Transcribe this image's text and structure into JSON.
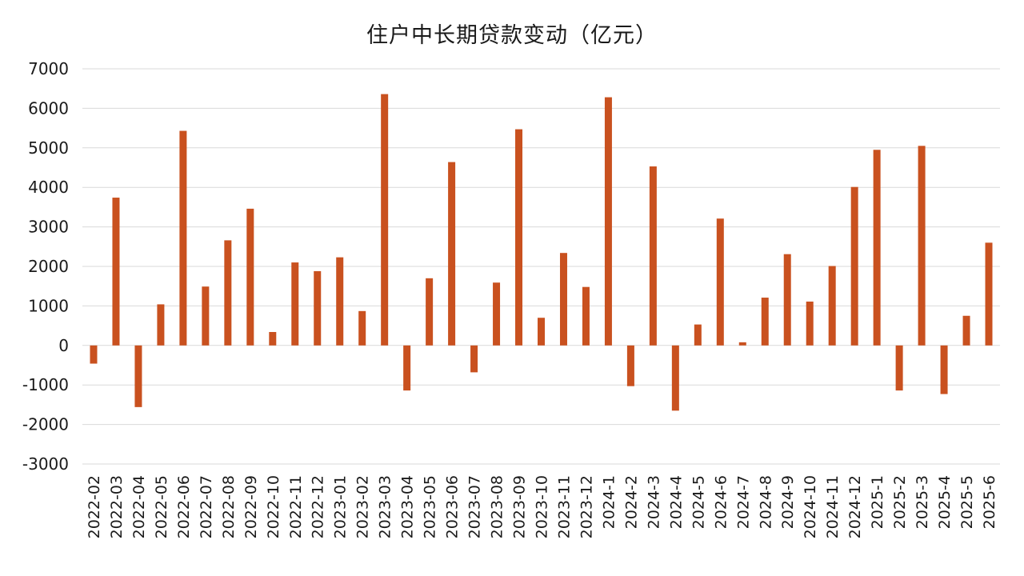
{
  "chart_data": {
    "type": "bar",
    "title": "住户中长期贷款变动（亿元）",
    "xlabel": "",
    "ylabel": "",
    "ylim": [
      -3000,
      7000
    ],
    "yticks": [
      7000,
      6000,
      5000,
      4000,
      3000,
      2000,
      1000,
      0,
      -1000,
      -2000,
      -3000
    ],
    "grid": true,
    "legend": "none",
    "bar_color": "#c9511f",
    "categories": [
      "2022-02",
      "2022-03",
      "2022-04",
      "2022-05",
      "2022-06",
      "2022-07",
      "2022-08",
      "2022-09",
      "2022-10",
      "2022-11",
      "2022-12",
      "2023-01",
      "2023-02",
      "2023-03",
      "2023-04",
      "2023-05",
      "2023-06",
      "2023-07",
      "2023-08",
      "2023-09",
      "2023-10",
      "2023-11",
      "2023-12",
      "2024-1",
      "2024-2",
      "2024-3",
      "2024-4",
      "2024-5",
      "2024-6",
      "2024-7",
      "2024-8",
      "2024-9",
      "2024-10",
      "2024-11",
      "2024-12",
      "2025-1",
      "2025-2",
      "2025-3",
      "2025-4",
      "2025-5",
      "2025-6"
    ],
    "values": [
      -460,
      3740,
      -1560,
      1040,
      5430,
      1490,
      2660,
      3460,
      340,
      2100,
      1880,
      2230,
      870,
      6360,
      -1140,
      1700,
      4640,
      -680,
      1590,
      5470,
      700,
      2340,
      1480,
      6280,
      -1030,
      4530,
      -1650,
      530,
      3210,
      80,
      1210,
      2310,
      1110,
      2010,
      4010,
      4950,
      -1140,
      5050,
      -1230,
      750,
      2600
    ]
  }
}
